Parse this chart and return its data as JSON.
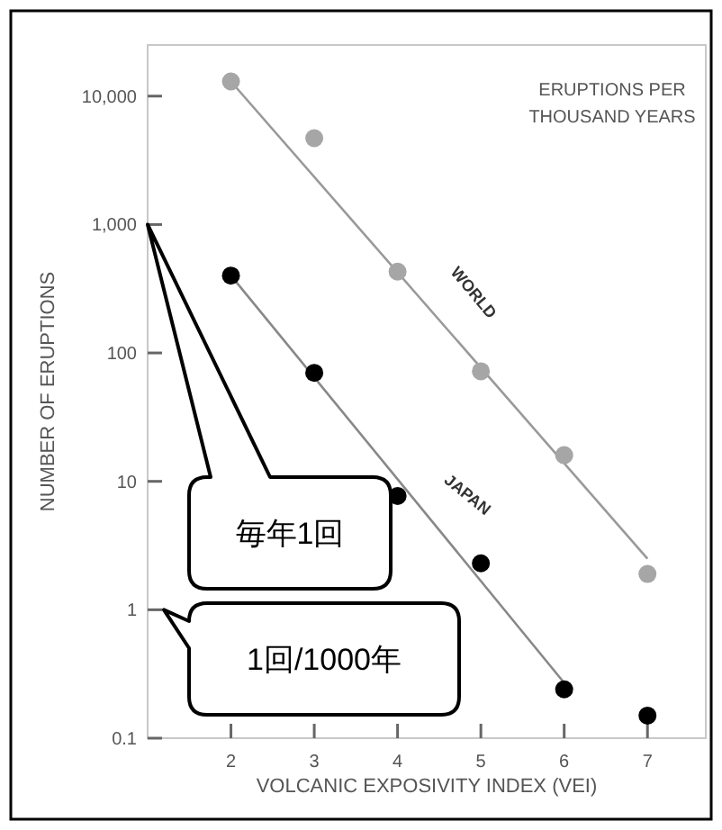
{
  "chart_data": {
    "type": "scatter",
    "xlabel": "VOLCANIC EXPOSIVITY INDEX (VEI)",
    "ylabel": "NUMBER OF ERUPTIONS",
    "x": [
      2,
      3,
      4,
      5,
      6,
      7
    ],
    "series": [
      {
        "name": "WORLD",
        "color": "#a6a6a6",
        "marker": "circle",
        "values": [
          13000,
          4700,
          430,
          72,
          16,
          1.9
        ]
      },
      {
        "name": "JAPAN",
        "color": "#000000",
        "marker": "circle",
        "values": [
          400,
          70,
          7.7,
          2.3,
          0.24,
          0.15
        ]
      },
      {
        "type": "line",
        "color": "#999999",
        "x": [
          2,
          7
        ],
        "values": [
          13000,
          2.5
        ]
      },
      {
        "type": "line",
        "color": "#888888",
        "x": [
          2,
          6
        ],
        "values": [
          400,
          0.27
        ]
      }
    ],
    "log": true,
    "xlim": [
      1,
      7.7
    ],
    "ylim": [
      0.1,
      25000
    ],
    "xticks": [
      2,
      3,
      4,
      5,
      6,
      7
    ],
    "yticks": [
      0.1,
      1,
      10,
      100,
      {
        "value": 1000,
        "label": "1,000"
      },
      {
        "value": 10000,
        "label": "10,000"
      }
    ],
    "grid": false,
    "annotations": [
      "ERUPTIONS PER THOUSAND YEARS",
      "毎年1回",
      "1回/1000年"
    ]
  }
}
